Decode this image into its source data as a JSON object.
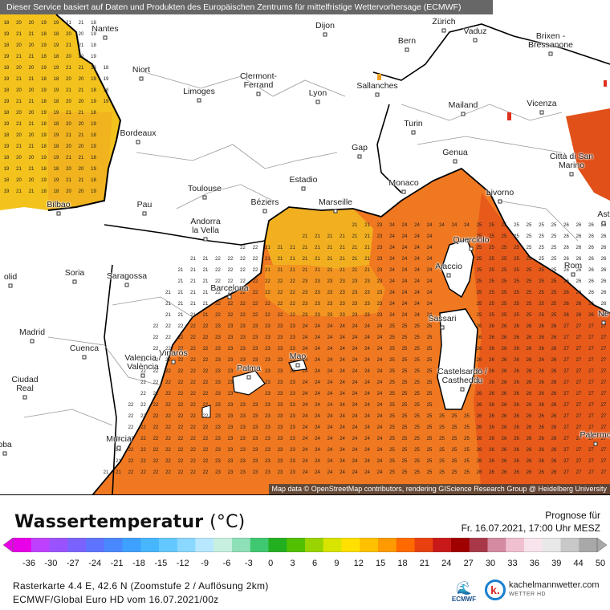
{
  "map": {
    "banner": "Dieser Service basiert auf Daten und Produkten des Europäischen Zentrums für mittelfristige Wettervorhersage (ECMWF)",
    "attribution": "Map data © OpenStreetMap contributors, rendering GIScience Research Group @ Heidelberg University",
    "cities": [
      "Nantes",
      "Dijon",
      "Zürich",
      "Vaduz",
      "Bern",
      "Niort",
      "Brixen - Bressanone",
      "Limoges",
      "Clermont-Ferrand",
      "Lyon",
      "Sallanches",
      "Mailand",
      "Vicenza",
      "Bordeaux",
      "Turin",
      "Gap",
      "Genua",
      "Città di San Marino",
      "Toulouse",
      "Estadio",
      "Monaco",
      "Livorno",
      "Bilbao",
      "Pau",
      "Béziers",
      "Marseille",
      "Andorra la Vella",
      "Querciolo",
      "Soria",
      "Ajaccio",
      "Rom",
      "Saragossa",
      "Barcelona",
      "Sassari",
      "Madrid",
      "Vinaròs",
      "Cuenca",
      "Valencia / València",
      "Mao",
      "Palma",
      "Castelsardo / Castheddu",
      "Ciudad Real",
      "Murcia",
      "Palermo",
      "olid",
      "Ne",
      "Ast",
      "oba"
    ],
    "sample_values": {
      "atlantic": [
        "19",
        "20",
        "18",
        "21"
      ],
      "med": [
        "21",
        "22",
        "23",
        "24",
        "25",
        "26",
        "27"
      ]
    }
  },
  "legend": {
    "title": "Wassertemperatur",
    "unit": "(°C)",
    "forecast_label": "Prognose für",
    "forecast_time": "Fr. 16.07.2021, 17:00 Uhr MESZ",
    "ticks": [
      "-36",
      "-30",
      "-27",
      "-24",
      "-21",
      "-18",
      "-15",
      "-12",
      "-9",
      "-6",
      "-3",
      "0",
      "3",
      "6",
      "9",
      "12",
      "15",
      "18",
      "21",
      "24",
      "27",
      "30",
      "33",
      "36",
      "39",
      "44",
      "50"
    ],
    "colors": [
      "#e800e8",
      "#c040ff",
      "#9a52ff",
      "#7a62ff",
      "#5c74ff",
      "#4a88ff",
      "#3ea0ff",
      "#46b6ff",
      "#62c8ff",
      "#8ad8ff",
      "#b8e8ff",
      "#c8f0e0",
      "#8ee0b8",
      "#3fc870",
      "#22b020",
      "#50c000",
      "#9ad400",
      "#d8e400",
      "#ffe000",
      "#ffc000",
      "#ff9a00",
      "#ff6a00",
      "#e84010",
      "#c81818",
      "#a00000",
      "#a83848",
      "#d48aa0",
      "#f0c0d0",
      "#f8e4ec",
      "#e8e8e8",
      "#c8c8c8",
      "#a8a8a8"
    ]
  },
  "footer": {
    "meta_line1": "Rasterkarte 4.4 E, 42.6 N (Zoomstufe 2 / Auflösung 2km)",
    "meta_line2": "ECMWF/Global Euro HD vom  16.07.2021/00z",
    "ecmwf_label": "ECMWF",
    "brand_name": "kachelmannwetter.com",
    "brand_sub": "WETTER HD",
    "brand_letter": "k."
  }
}
